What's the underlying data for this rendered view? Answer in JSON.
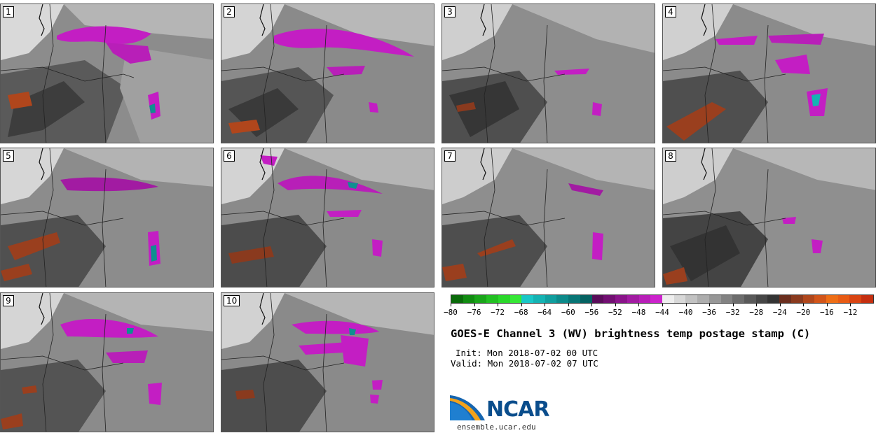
{
  "panels": [
    {
      "label": "1"
    },
    {
      "label": "2"
    },
    {
      "label": "3"
    },
    {
      "label": "4"
    },
    {
      "label": "5"
    },
    {
      "label": "6"
    },
    {
      "label": "7"
    },
    {
      "label": "8"
    },
    {
      "label": "9"
    },
    {
      "label": "10"
    }
  ],
  "colorbar": {
    "colors": [
      "#0a6b0a",
      "#118c11",
      "#1aa51a",
      "#22c022",
      "#2ad82a",
      "#36e836",
      "#19c7c7",
      "#14b3b3",
      "#109e9e",
      "#0c8a8a",
      "#087676",
      "#056262",
      "#5a0d5a",
      "#720f72",
      "#8a148a",
      "#a21ba2",
      "#b81fb8",
      "#cc22cc",
      "#eeeeee",
      "#d8d8d8",
      "#c2c2c2",
      "#adadad",
      "#979797",
      "#828282",
      "#6d6d6d",
      "#595959",
      "#464646",
      "#343434",
      "#6b2e1e",
      "#8a3a1e",
      "#b0471c",
      "#d2551a",
      "#ee6e16",
      "#e85b14",
      "#d94412",
      "#c52f10"
    ],
    "tick_labels": [
      "−80",
      "−76",
      "−72",
      "−68",
      "−64",
      "−60",
      "−56",
      "−52",
      "−48",
      "−44",
      "−40",
      "−36",
      "−32",
      "−28",
      "−24",
      "−20",
      "−16",
      "−12"
    ]
  },
  "title": "GOES-E Channel 3 (WV) brightness temp postage stamp (C)",
  "init": "Init: Mon 2018-07-02 00 UTC",
  "valid": "Valid: Mon 2018-07-02 07 UTC",
  "logo": {
    "text": "NCAR",
    "url": "ensemble.ucar.edu"
  }
}
